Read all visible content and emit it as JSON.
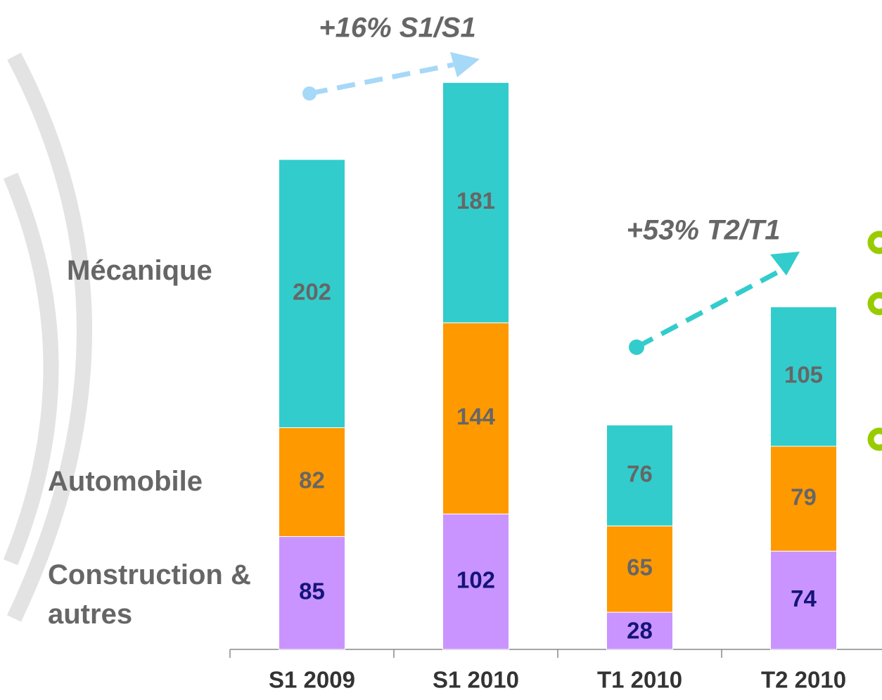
{
  "chart_data": {
    "type": "stacked-bar",
    "categories": [
      "S1 2009",
      "S1 2010",
      "T1 2010",
      "T2 2010"
    ],
    "series": [
      {
        "name": "Construction & autres",
        "color": "#c994ff",
        "label_color": "#14147a",
        "values": [
          85,
          102,
          28,
          74
        ]
      },
      {
        "name": "Automobile",
        "color": "#ff9900",
        "label_color": "#666666",
        "values": [
          82,
          144,
          65,
          79
        ]
      },
      {
        "name": "Mécanique",
        "color": "#33cccc",
        "label_color": "#666666",
        "values": [
          202,
          181,
          76,
          105
        ]
      }
    ],
    "annotations": [
      "+16% S1/S1",
      "+53% T2/T1"
    ]
  }
}
